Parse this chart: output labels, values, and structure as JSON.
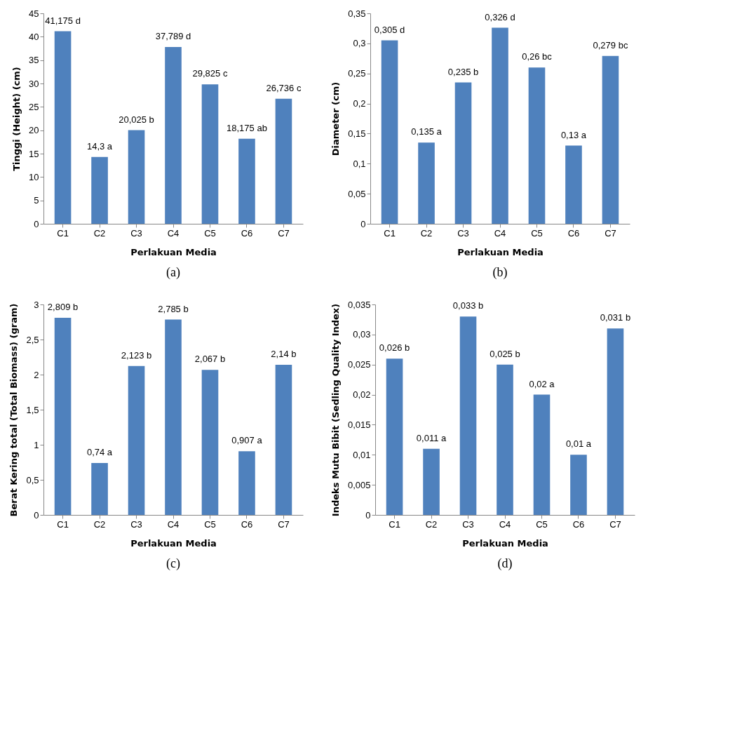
{
  "chart_data": [
    {
      "type": "bar",
      "xlabel": "Perlakuan Media",
      "ylabel": "Tinggi (Height) (cm)",
      "categories": [
        "C1",
        "C2",
        "C3",
        "C4",
        "C5",
        "C6",
        "C7"
      ],
      "values": [
        41.175,
        14.3,
        20.025,
        37.789,
        29.825,
        18.175,
        26.736
      ],
      "value_labels": [
        "41,175 d",
        "14,3 a",
        "20,025 b",
        "37,789 d",
        "29,825 c",
        "18,175 ab",
        "26,736 c"
      ],
      "color": "#4f81bd",
      "ylim": [
        0,
        45
      ],
      "yticks": [
        0,
        5,
        10,
        15,
        20,
        25,
        30,
        35,
        40,
        45
      ],
      "annotations": [
        "(a)"
      ]
    },
    {
      "type": "bar",
      "xlabel": "Perlakuan Media",
      "ylabel": "Diameter (cm)",
      "categories": [
        "C1",
        "C2",
        "C3",
        "C4",
        "C5",
        "C6",
        "C7"
      ],
      "values": [
        0.305,
        0.135,
        0.235,
        0.326,
        0.26,
        0.13,
        0.279
      ],
      "value_labels": [
        "0,305 d",
        "0,135 a",
        "0,235 b",
        "0,326 d",
        "0,26 bc",
        "0,13 a",
        "0,279 bc"
      ],
      "color": "#4f81bd",
      "ylim": [
        0,
        0.35
      ],
      "yticks": [
        0,
        {
          "value": 0.05,
          "label": "0,05"
        },
        {
          "value": 0.1,
          "label": "0,1"
        },
        {
          "value": 0.15,
          "label": "0,15"
        },
        {
          "value": 0.2,
          "label": "0,2"
        },
        {
          "value": 0.25,
          "label": "0,25"
        },
        {
          "value": 0.3,
          "label": "0,3"
        },
        {
          "value": 0.35,
          "label": "0,35"
        }
      ],
      "annotations": [
        "(b)"
      ]
    },
    {
      "type": "bar",
      "xlabel": "Perlakuan Media",
      "ylabel": "Berat Kering total (Total Biomass) (gram)",
      "categories": [
        "C1",
        "C2",
        "C3",
        "C4",
        "C5",
        "C6",
        "C7"
      ],
      "values": [
        2.809,
        0.74,
        2.123,
        2.785,
        2.067,
        0.907,
        2.14
      ],
      "value_labels": [
        "2,809 b",
        "0,74 a",
        "2,123 b",
        "2,785 b",
        "2,067 b",
        "0,907 a",
        "2,14 b"
      ],
      "color": "#4f81bd",
      "ylim": [
        0,
        3
      ],
      "yticks": [
        0,
        {
          "value": 0.5,
          "label": "0,5"
        },
        1,
        {
          "value": 1.5,
          "label": "1,5"
        },
        2,
        {
          "value": 2.5,
          "label": "2,5"
        },
        3
      ],
      "annotations": [
        "(c)"
      ]
    },
    {
      "type": "bar",
      "xlabel": "Perlakuan Media",
      "ylabel": "Indeks Mutu Bibit (Sedling Quality Index)",
      "categories": [
        "C1",
        "C2",
        "C3",
        "C4",
        "C5",
        "C6",
        "C7"
      ],
      "values": [
        0.026,
        0.011,
        0.033,
        0.025,
        0.02,
        0.01,
        0.031
      ],
      "value_labels": [
        "0,026 b",
        "0,011 a",
        "0,033 b",
        "0,025 b",
        "0,02 a",
        "0,01 a",
        "0,031 b"
      ],
      "color": "#4f81bd",
      "ylim": [
        0,
        0.035
      ],
      "yticks": [
        0,
        {
          "value": 0.005,
          "label": "0,005"
        },
        {
          "value": 0.01,
          "label": "0,01"
        },
        {
          "value": 0.015,
          "label": "0,015"
        },
        {
          "value": 0.02,
          "label": "0,02"
        },
        {
          "value": 0.025,
          "label": "0,025"
        },
        {
          "value": 0.03,
          "label": "0,03"
        },
        {
          "value": 0.035,
          "label": "0,035"
        }
      ],
      "annotations": [
        "(d)"
      ]
    }
  ]
}
